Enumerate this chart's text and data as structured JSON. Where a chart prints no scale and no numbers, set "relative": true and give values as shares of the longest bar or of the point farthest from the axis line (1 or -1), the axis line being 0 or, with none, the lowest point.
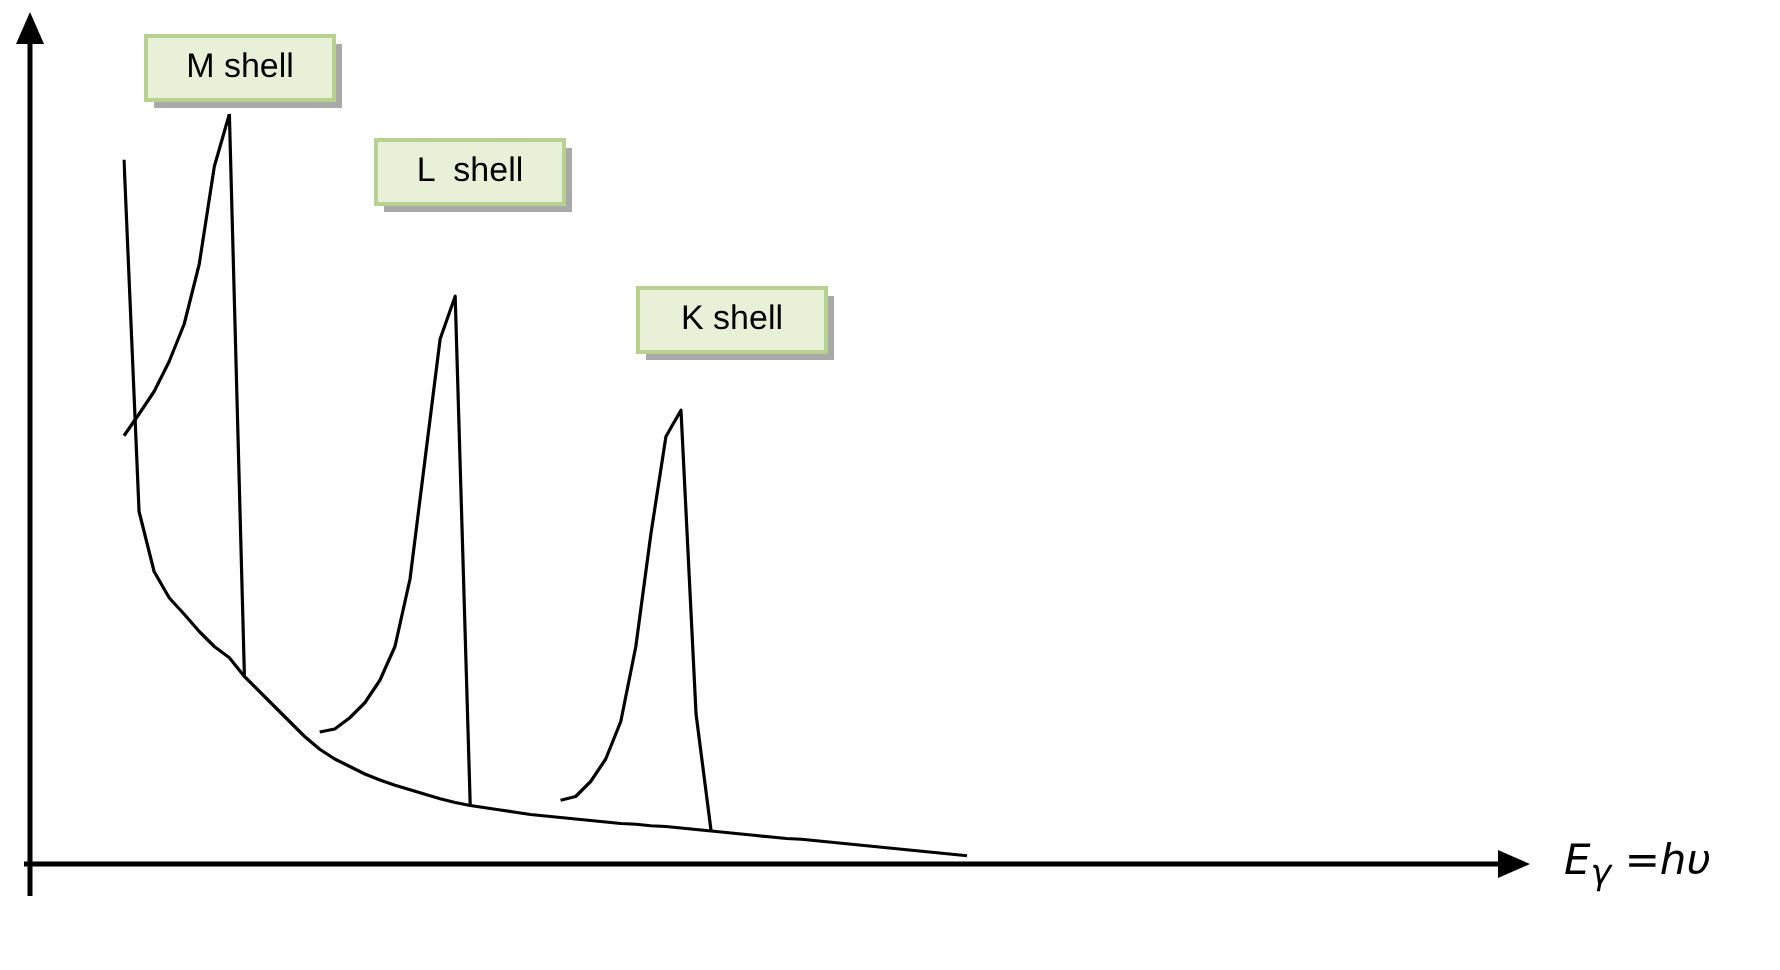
{
  "chart_data": {
    "type": "line",
    "relative": true,
    "xlabel": "E$_{γ}$ =hυ",
    "legend": false,
    "marker": "none",
    "line_style": "solid",
    "categories": [
      null,
      null,
      null,
      null,
      null,
      null,
      null,
      null,
      null,
      null,
      null,
      null,
      null,
      null,
      null,
      null,
      null,
      null,
      null,
      null,
      null,
      null,
      null,
      null,
      null,
      null,
      null,
      null,
      null,
      null,
      null,
      null,
      null,
      null,
      null,
      null,
      null,
      null,
      null,
      null,
      null,
      null,
      null,
      null,
      null,
      null,
      null,
      null,
      null,
      null,
      null,
      null,
      null,
      null,
      null,
      null,
      null,
      null,
      null,
      null,
      null,
      null,
      null,
      null,
      null,
      null,
      null,
      null,
      null,
      null,
      null,
      null,
      null,
      null,
      null,
      null,
      null,
      null,
      null,
      null,
      null,
      null,
      null,
      null,
      null,
      null,
      null,
      null,
      null,
      null,
      null,
      null,
      null,
      null
    ],
    "series": [
      {
        "color": "#000000",
        "values": [
          0.939,
          0.47,
          0.39,
          0.355,
          0.333,
          0.31,
          0.29,
          0.275,
          0.25,
          0.23,
          0.21,
          0.19,
          0.17,
          0.153,
          0.14,
          0.13,
          0.12,
          0.112,
          0.105,
          0.099,
          0.093,
          0.087,
          0.082,
          0.078,
          0.075,
          0.072,
          0.069,
          0.066,
          0.064,
          0.062,
          0.06,
          0.058,
          0.056,
          0.054,
          0.053,
          0.051,
          0.05,
          0.048,
          0.046,
          0.044,
          0.042,
          0.04,
          0.038,
          0.036,
          0.034,
          0.033,
          0.031,
          0.029,
          0.027,
          0.025,
          0.023,
          0.021,
          0.019,
          0.017,
          0.015,
          0.013,
          0.011,
          null,
          null,
          null,
          null,
          null,
          null,
          null,
          null,
          null,
          null,
          null,
          null,
          null,
          null,
          null,
          null,
          null,
          null,
          null,
          null,
          null,
          null,
          null,
          null,
          null,
          null,
          null,
          null,
          null,
          null,
          null,
          null,
          null,
          null,
          null,
          null,
          null
        ]
      },
      {
        "color": "#000000",
        "values": [
          0.571,
          0.6,
          0.63,
          0.67,
          0.72,
          0.8,
          0.93,
          1,
          0.25,
          null,
          null,
          null,
          null,
          null,
          null,
          null,
          null,
          null,
          null,
          null,
          null,
          null,
          null,
          null,
          null,
          null,
          null,
          null,
          null,
          null,
          null,
          null,
          null,
          null,
          null,
          null,
          null,
          null,
          null,
          null,
          null,
          null,
          null,
          null,
          null,
          null,
          null,
          null,
          null,
          null,
          null,
          null,
          null,
          null,
          null,
          null,
          null,
          null,
          null,
          null,
          null,
          null,
          null,
          null,
          null,
          null,
          null,
          null,
          null,
          null,
          null,
          null,
          null,
          null,
          null,
          null,
          null,
          null,
          null,
          null,
          null,
          null,
          null,
          null,
          null,
          null,
          null,
          null,
          null,
          null,
          null,
          null,
          null,
          null
        ]
      },
      {
        "color": "#000000",
        "values": [
          null,
          null,
          null,
          null,
          null,
          null,
          null,
          null,
          null,
          null,
          null,
          null,
          null,
          0.176,
          0.18,
          0.195,
          0.215,
          0.245,
          0.29,
          0.38,
          0.54,
          0.7,
          0.757,
          0.078,
          null,
          null,
          null,
          null,
          null,
          null,
          null,
          null,
          null,
          null,
          null,
          null,
          null,
          null,
          null,
          null,
          null,
          null,
          null,
          null,
          null,
          null,
          null,
          null,
          null,
          null,
          null,
          null,
          null,
          null,
          null,
          null,
          null,
          null,
          null,
          null,
          null,
          null,
          null,
          null,
          null,
          null,
          null,
          null,
          null,
          null,
          null,
          null,
          null,
          null,
          null,
          null,
          null,
          null,
          null,
          null,
          null,
          null,
          null,
          null,
          null,
          null,
          null,
          null,
          null,
          null,
          null,
          null,
          null,
          null
        ]
      },
      {
        "color": "#000000",
        "values": [
          null,
          null,
          null,
          null,
          null,
          null,
          null,
          null,
          null,
          null,
          null,
          null,
          null,
          null,
          null,
          null,
          null,
          null,
          null,
          null,
          null,
          null,
          null,
          null,
          null,
          null,
          null,
          null,
          null,
          0.085,
          0.09,
          0.11,
          0.14,
          0.19,
          0.29,
          0.44,
          0.57,
          0.605,
          0.2,
          0.044,
          null,
          null,
          null,
          null,
          null,
          null,
          null,
          null,
          null,
          null,
          null,
          null,
          null,
          null,
          null,
          null,
          null,
          null,
          null,
          null,
          null,
          null,
          null,
          null,
          null,
          null,
          null,
          null,
          null,
          null,
          null,
          null,
          null,
          null,
          null,
          null,
          null,
          null,
          null,
          null,
          null,
          null,
          null,
          null,
          null,
          null,
          null,
          null,
          null,
          null,
          null,
          null,
          null,
          null
        ]
      }
    ],
    "annotations": [
      "M shell",
      "L  shell",
      "K shell"
    ]
  }
}
